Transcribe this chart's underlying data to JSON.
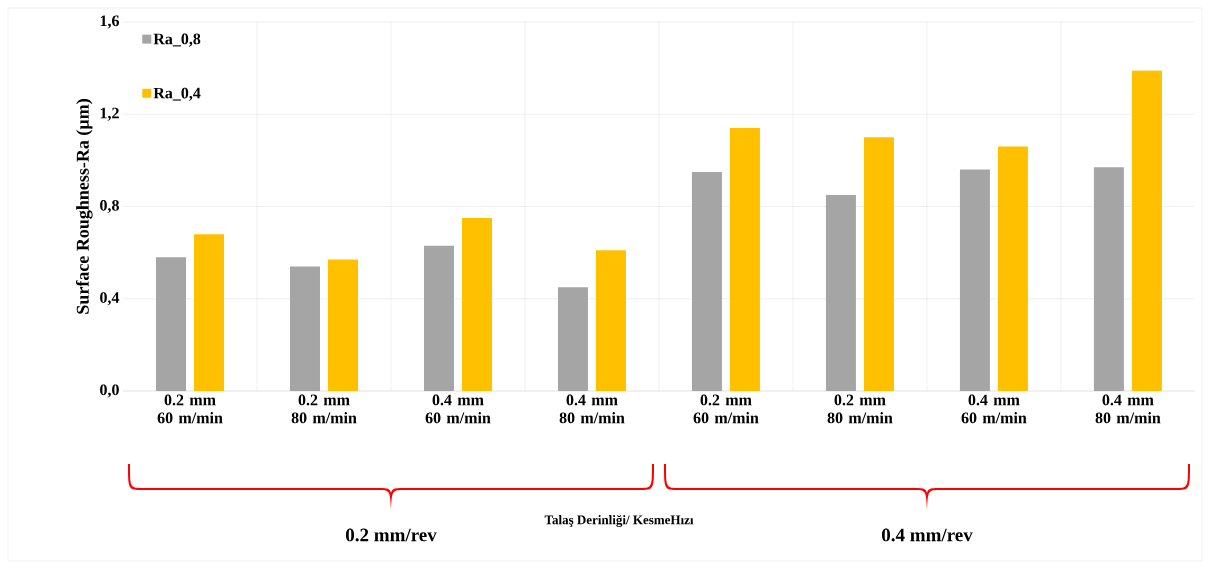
{
  "chart_data": {
    "type": "bar",
    "categories": [
      "0.2 mm 60 m/min",
      "0.2 mm 80 m/min",
      "0.4 mm 60 m/min",
      "0.4 mm 80 m/min",
      "0.2 mm 60 m/min",
      "0.2 mm 80 m/min",
      "0.4 mm 60 m/min",
      "0.4 mm 80 m/min"
    ],
    "series": [
      {
        "name": "Ra_0,8",
        "color": "#a5a5a5",
        "values": [
          0.58,
          0.54,
          0.63,
          0.45,
          0.95,
          0.85,
          0.96,
          0.97
        ]
      },
      {
        "name": "Ra_0,4",
        "color": "#ffc000",
        "values": [
          0.68,
          0.57,
          0.75,
          0.61,
          1.14,
          1.1,
          1.06,
          1.39
        ]
      }
    ],
    "ylim": [
      0,
      1.6
    ],
    "yticks": [
      {
        "value": 0,
        "label": "0,0"
      },
      {
        "value": 0.4,
        "label": "0,4"
      },
      {
        "value": 0.8,
        "label": "0,8"
      },
      {
        "value": 1.2,
        "label": "1,2"
      },
      {
        "value": 1.6,
        "label": "1,6"
      }
    ],
    "ylabel": "Surface Roughness-Ra (µm)",
    "annotations": [
      "0.2 mm/rev",
      "Talaş Derinliği/ KesmeHızı",
      "0.4 mm/rev"
    ],
    "legend": "top left",
    "grid": true
  }
}
